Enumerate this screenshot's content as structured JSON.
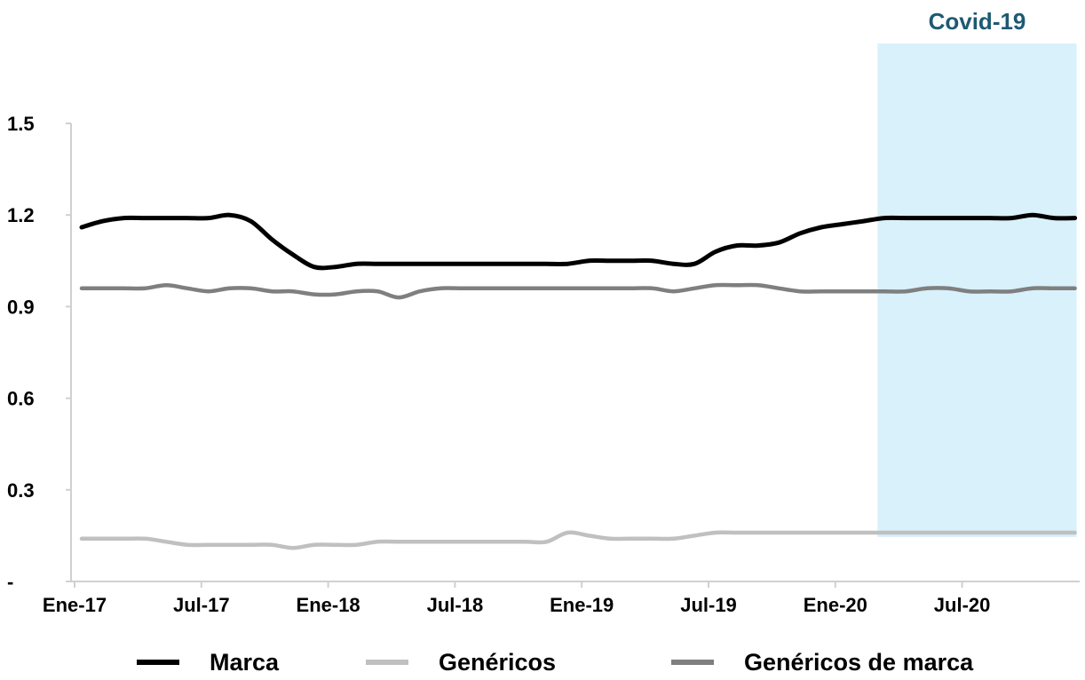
{
  "chart_data": {
    "type": "line",
    "title": "",
    "xlabel": "",
    "ylabel": "",
    "ylim": [
      0,
      1.5
    ],
    "y_ticks": [
      0,
      0.3,
      0.6,
      0.9,
      1.2,
      1.5
    ],
    "y_tick_labels": [
      "-",
      "0.3",
      "0.6",
      "0.9",
      "1.2",
      "1.5"
    ],
    "x_tick_labels": [
      "Ene-17",
      "Jul-17",
      "Ene-18",
      "Jul-18",
      "Ene-19",
      "Jul-19",
      "Ene-20",
      "Jul-20"
    ],
    "x_tick_index": [
      0,
      6,
      12,
      18,
      24,
      30,
      36,
      42
    ],
    "x": [
      "Ene-17",
      "Feb-17",
      "Mar-17",
      "Abr-17",
      "May-17",
      "Jun-17",
      "Jul-17",
      "Ago-17",
      "Sep-17",
      "Oct-17",
      "Nov-17",
      "Dic-17",
      "Ene-18",
      "Feb-18",
      "Mar-18",
      "Abr-18",
      "May-18",
      "Jun-18",
      "Jul-18",
      "Ago-18",
      "Sep-18",
      "Oct-18",
      "Nov-18",
      "Dic-18",
      "Ene-19",
      "Feb-19",
      "Mar-19",
      "Abr-19",
      "May-19",
      "Jun-19",
      "Jul-19",
      "Ago-19",
      "Sep-19",
      "Oct-19",
      "Nov-19",
      "Dic-19",
      "Ene-20",
      "Feb-20",
      "Mar-20",
      "Abr-20",
      "May-20",
      "Jun-20",
      "Jul-20",
      "Ago-20",
      "Sep-20",
      "Oct-20",
      "Nov-20",
      "Dic-20"
    ],
    "series": [
      {
        "name": "Marca",
        "color": "#000000",
        "values": [
          1.16,
          1.18,
          1.19,
          1.19,
          1.19,
          1.19,
          1.19,
          1.2,
          1.18,
          1.12,
          1.07,
          1.03,
          1.03,
          1.04,
          1.04,
          1.04,
          1.04,
          1.04,
          1.04,
          1.04,
          1.04,
          1.04,
          1.04,
          1.04,
          1.05,
          1.05,
          1.05,
          1.05,
          1.04,
          1.04,
          1.08,
          1.1,
          1.1,
          1.11,
          1.14,
          1.16,
          1.17,
          1.18,
          1.19,
          1.19,
          1.19,
          1.19,
          1.19,
          1.19,
          1.19,
          1.2,
          1.19,
          1.19
        ]
      },
      {
        "name": "Genéricos",
        "color": "#c0c0c0",
        "values": [
          0.14,
          0.14,
          0.14,
          0.14,
          0.13,
          0.12,
          0.12,
          0.12,
          0.12,
          0.12,
          0.11,
          0.12,
          0.12,
          0.12,
          0.13,
          0.13,
          0.13,
          0.13,
          0.13,
          0.13,
          0.13,
          0.13,
          0.13,
          0.16,
          0.15,
          0.14,
          0.14,
          0.14,
          0.14,
          0.15,
          0.16,
          0.16,
          0.16,
          0.16,
          0.16,
          0.16,
          0.16,
          0.16,
          0.16,
          0.16,
          0.16,
          0.16,
          0.16,
          0.16,
          0.16,
          0.16,
          0.16,
          0.16
        ]
      },
      {
        "name": "Genéricos de marca",
        "color": "#7f7f7f",
        "values": [
          0.96,
          0.96,
          0.96,
          0.96,
          0.97,
          0.96,
          0.95,
          0.96,
          0.96,
          0.95,
          0.95,
          0.94,
          0.94,
          0.95,
          0.95,
          0.93,
          0.95,
          0.96,
          0.96,
          0.96,
          0.96,
          0.96,
          0.96,
          0.96,
          0.96,
          0.96,
          0.96,
          0.96,
          0.95,
          0.96,
          0.97,
          0.97,
          0.97,
          0.96,
          0.95,
          0.95,
          0.95,
          0.95,
          0.95,
          0.95,
          0.96,
          0.96,
          0.95,
          0.95,
          0.95,
          0.96,
          0.96,
          0.96
        ]
      }
    ],
    "annotations": [
      {
        "label": "Covid-19",
        "start": "Mar-20",
        "end": "Dic-20",
        "color": "#d9f1fb",
        "label_color": "#1d5a72"
      }
    ],
    "legend_position": "bottom",
    "grid": false
  }
}
